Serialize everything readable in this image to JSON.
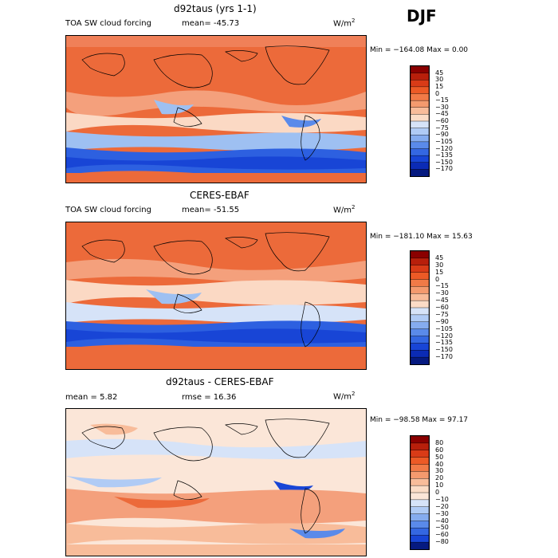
{
  "header": {
    "season": "DJF"
  },
  "panels": [
    {
      "title": "d92taus (yrs 1-1)",
      "left_label": "TOA SW cloud forcing",
      "stat_label": "mean=  -45.73",
      "units": "W/m",
      "units_sup": "2",
      "minmax": "Min = −164.08 Max =    0.00",
      "colorbar_levels": [
        "45",
        "30",
        "15",
        "0",
        "−15",
        "−30",
        "−45",
        "−60",
        "−75",
        "−90",
        "−105",
        "−120",
        "−135",
        "−150",
        "−170"
      ],
      "colorbar_colors": [
        "#8b0000",
        "#b81f0b",
        "#d93b17",
        "#ec5a26",
        "#f17a47",
        "#f49a6e",
        "#f8bc9a",
        "#fbdcc6",
        "#d6e3f8",
        "#b0cbf5",
        "#85acef",
        "#5a8aea",
        "#3467e2",
        "#1845d6",
        "#0b2bb5",
        "#061a80"
      ]
    },
    {
      "title": "CERES-EBAF",
      "left_label": "TOA SW cloud forcing",
      "stat_label": "mean=  -51.55",
      "units": "W/m",
      "units_sup": "2",
      "minmax": "Min = −181.10 Max =   15.63",
      "colorbar_levels": [
        "45",
        "30",
        "15",
        "0",
        "−15",
        "−30",
        "−45",
        "−60",
        "−75",
        "−90",
        "−105",
        "−120",
        "−135",
        "−150",
        "−170"
      ],
      "colorbar_colors": [
        "#8b0000",
        "#b81f0b",
        "#d93b17",
        "#ec5a26",
        "#f17a47",
        "#f49a6e",
        "#f8bc9a",
        "#fbdcc6",
        "#d6e3f8",
        "#b0cbf5",
        "#85acef",
        "#5a8aea",
        "#3467e2",
        "#1845d6",
        "#0b2bb5",
        "#061a80"
      ]
    },
    {
      "title": "d92taus - CERES-EBAF",
      "left_label": "mean =    5.82",
      "stat_label": "rmse =   16.36",
      "units": "W/m",
      "units_sup": "2",
      "minmax": "Min = −98.58 Max =  97.17",
      "colorbar_levels": [
        "80",
        "60",
        "50",
        "40",
        "30",
        "20",
        "10",
        "0",
        "−10",
        "−20",
        "−30",
        "−40",
        "−50",
        "−60",
        "−80"
      ],
      "colorbar_colors": [
        "#8b0000",
        "#b81f0b",
        "#d93b17",
        "#ec5a26",
        "#f17a47",
        "#f49a6e",
        "#f8bc9a",
        "#fbdcc6",
        "#fbe6d8",
        "#d6e3f8",
        "#b0cbf5",
        "#85acef",
        "#5a8aea",
        "#3467e2",
        "#1845d6",
        "#061a80"
      ]
    }
  ],
  "chart_data": [
    {
      "type": "heatmap",
      "title": "d92taus (yrs 1-1)",
      "variable": "TOA SW cloud forcing",
      "mean": -45.73,
      "min": -164.08,
      "max": 0.0,
      "units": "W/m2",
      "levels": [
        45,
        30,
        15,
        0,
        -15,
        -30,
        -45,
        -60,
        -75,
        -90,
        -105,
        -120,
        -135,
        -150,
        -170
      ]
    },
    {
      "type": "heatmap",
      "title": "CERES-EBAF",
      "variable": "TOA SW cloud forcing",
      "mean": -51.55,
      "min": -181.1,
      "max": 15.63,
      "units": "W/m2",
      "levels": [
        45,
        30,
        15,
        0,
        -15,
        -30,
        -45,
        -60,
        -75,
        -90,
        -105,
        -120,
        -135,
        -150,
        -170
      ]
    },
    {
      "type": "heatmap",
      "title": "d92taus - CERES-EBAF",
      "mean": 5.82,
      "rmse": 16.36,
      "min": -98.58,
      "max": 97.17,
      "units": "W/m2",
      "levels": [
        80,
        60,
        50,
        40,
        30,
        20,
        10,
        0,
        -10,
        -20,
        -30,
        -40,
        -50,
        -60,
        -80
      ]
    }
  ]
}
